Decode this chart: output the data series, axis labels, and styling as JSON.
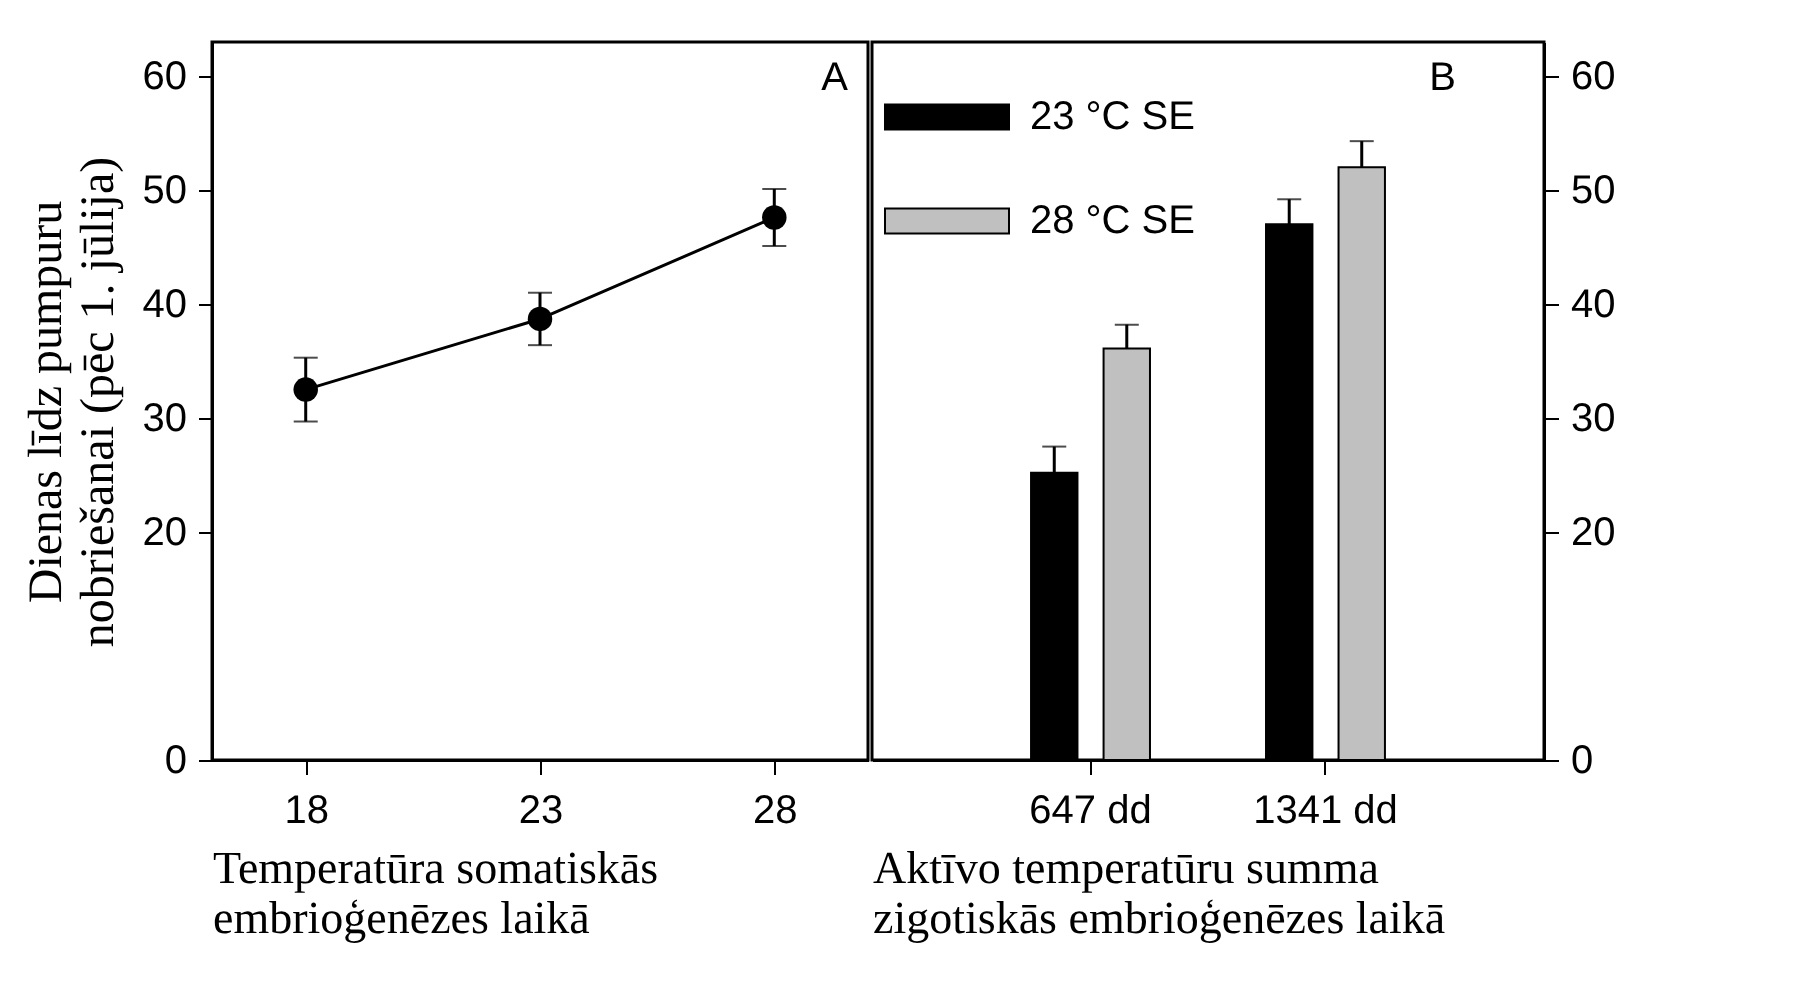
{
  "chart_data": [
    {
      "type": "line",
      "x": [
        18,
        23,
        28
      ],
      "xlim": [
        16,
        30
      ],
      "xticks": [
        18,
        23,
        28
      ],
      "ylim": [
        0,
        63
      ],
      "yticks": [
        0,
        20,
        30,
        40,
        50,
        60
      ],
      "xlabel": "Temperatūra somatiskās embrioģenēzes laikā",
      "ylabel": "Dienas līdz pumpuru nobriešanai (pēc 1. jūlija)",
      "marker": "circle",
      "annotations": [
        "A"
      ],
      "series": [
        {
          "color": "#000000",
          "values": [
            32.5,
            38.7,
            47.6
          ],
          "errors": [
            2.8,
            2.3,
            2.5
          ]
        }
      ]
    },
    {
      "type": "bar",
      "categories": [
        "647 dd",
        "1341 dd"
      ],
      "y2lim": [
        0,
        63
      ],
      "y2ticks": [
        0,
        20,
        30,
        40,
        50,
        60
      ],
      "xlabel": "Aktīvo temperatūru summa zigotiskās embrioģenēzes laikā",
      "legend": "top left",
      "annotations": [
        "B"
      ],
      "series": [
        {
          "name": "23 °C SE",
          "color": "#000000",
          "axis": "y2",
          "values": [
            25.2,
            47.0
          ],
          "errors": [
            2.3,
            2.2
          ]
        },
        {
          "name": "28 °C SE",
          "color": "#c0c0c0",
          "axis": "y2",
          "values": [
            36.1,
            52.0
          ],
          "errors": [
            2.1,
            2.3
          ]
        }
      ]
    }
  ]
}
